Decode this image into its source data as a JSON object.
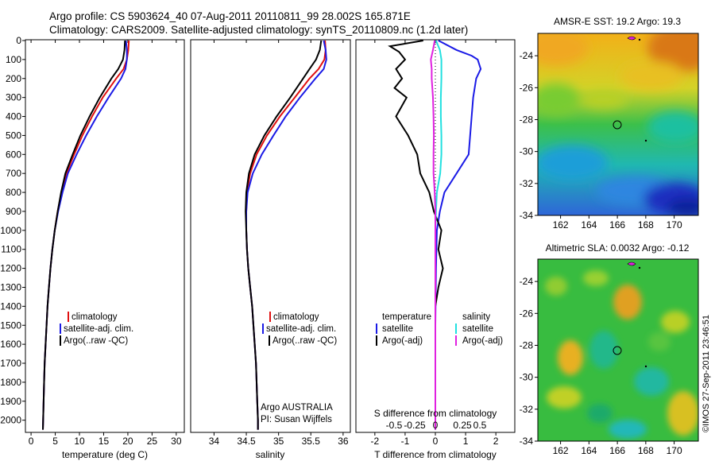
{
  "header": {
    "line1": "Argo profile: CS 5903624_40 07-Aug-2011 20110811_99 28.002S 165.871E",
    "line2": "Climatology: CARS2009. Satellite-adjusted climatology: synTS_20110809.nc (1.2d later)"
  },
  "colors": {
    "climatology": "#e01010",
    "satellite": "#1a1ae6",
    "argo": "#000000",
    "satellite_salinity": "#22e0e0",
    "argo_salinity": "#e020e0"
  },
  "depth_axis": {
    "ticks": [
      0,
      100,
      200,
      300,
      400,
      500,
      600,
      700,
      800,
      900,
      1000,
      1100,
      1200,
      1300,
      1400,
      1500,
      1600,
      1700,
      1800,
      1900,
      2000
    ],
    "range": [
      0,
      2060
    ]
  },
  "chart_data": [
    {
      "type": "line",
      "xlabel": "temperature (deg C)",
      "xlim": [
        -1,
        31.5
      ],
      "xticks": [
        0,
        5,
        10,
        15,
        20,
        25,
        30
      ],
      "legend": [
        "climatology",
        "satellite-adj. clim.",
        "Argo(..raw -QC)"
      ],
      "series": [
        {
          "name": "climatology",
          "color": "red",
          "depth": [
            0,
            50,
            100,
            150,
            200,
            300,
            400,
            500,
            600,
            700,
            800,
            900,
            1000,
            1100,
            1200,
            1300,
            1400,
            1500,
            1600,
            1700,
            1800,
            1900,
            2000,
            2050
          ],
          "values": [
            20.2,
            20.1,
            19.8,
            19.1,
            17.6,
            14.8,
            12.6,
            10.6,
            8.9,
            7.3,
            6.3,
            5.5,
            4.9,
            4.4,
            4.0,
            3.7,
            3.4,
            3.2,
            3.0,
            2.8,
            2.7,
            2.6,
            2.5,
            2.45
          ]
        },
        {
          "name": "satellite-adj. clim.",
          "color": "blue",
          "depth": [
            0,
            50,
            100,
            150,
            200,
            300,
            400,
            500,
            600,
            700,
            800,
            900,
            1000,
            1100,
            1200,
            1300,
            1400,
            1500,
            1600,
            1700,
            1800,
            1900,
            2000,
            2050
          ],
          "values": [
            19.6,
            19.8,
            19.8,
            19.5,
            18.6,
            16.0,
            13.6,
            11.4,
            9.4,
            7.6,
            6.5,
            5.6,
            4.9,
            4.4,
            4.0,
            3.7,
            3.4,
            3.2,
            3.0,
            2.8,
            2.7,
            2.6,
            2.5,
            2.45
          ]
        },
        {
          "name": "Argo(..raw -QC)",
          "color": "black",
          "depth": [
            0,
            50,
            100,
            150,
            200,
            300,
            400,
            500,
            600,
            700,
            800,
            900,
            1000,
            1100,
            1200,
            1300,
            1400,
            1500,
            1600,
            1700,
            1800,
            1900,
            2000,
            2050
          ],
          "values": [
            19.4,
            19.3,
            19.0,
            18.0,
            16.6,
            14.2,
            12.1,
            10.2,
            8.6,
            7.1,
            6.2,
            5.5,
            4.9,
            4.4,
            4.0,
            3.7,
            3.4,
            3.2,
            3.0,
            2.8,
            2.7,
            2.6,
            2.5,
            2.45
          ]
        }
      ]
    },
    {
      "type": "line",
      "xlabel": "salinity",
      "xlim": [
        33.65,
        36.1
      ],
      "xticks": [
        34,
        34.5,
        35,
        35.5,
        36
      ],
      "legend": [
        "climatology",
        "satellite-adj. clim.",
        "Argo(..raw -QC)"
      ],
      "annotation": [
        "Argo AUSTRALIA",
        "PI: Susan Wijffels"
      ],
      "series": [
        {
          "name": "climatology",
          "color": "red",
          "depth": [
            0,
            50,
            100,
            150,
            200,
            300,
            400,
            500,
            600,
            700,
            800,
            900,
            1000,
            1100,
            1200,
            1300,
            1400,
            1500,
            1600,
            1700,
            1800,
            1900,
            2000,
            2050
          ],
          "values": [
            35.72,
            35.73,
            35.71,
            35.62,
            35.48,
            35.25,
            35.02,
            34.82,
            34.66,
            34.56,
            34.51,
            34.5,
            34.5,
            34.51,
            34.53,
            34.56,
            34.59,
            34.61,
            34.63,
            34.65,
            34.66,
            34.67,
            34.68,
            34.68
          ]
        },
        {
          "name": "satellite-adj. clim.",
          "color": "blue",
          "depth": [
            0,
            50,
            100,
            150,
            200,
            300,
            400,
            500,
            600,
            700,
            800,
            900,
            1000,
            1100,
            1200,
            1300,
            1400,
            1500,
            1600,
            1700,
            1800,
            1900,
            2000,
            2050
          ],
          "values": [
            35.7,
            35.73,
            35.74,
            35.7,
            35.57,
            35.33,
            35.11,
            34.92,
            34.74,
            34.6,
            34.52,
            34.5,
            34.5,
            34.51,
            34.53,
            34.56,
            34.59,
            34.61,
            34.63,
            34.65,
            34.66,
            34.67,
            34.68,
            34.68
          ]
        },
        {
          "name": "Argo(..raw -QC)",
          "color": "black",
          "depth": [
            0,
            50,
            100,
            150,
            200,
            300,
            400,
            500,
            600,
            700,
            800,
            900,
            1000,
            1100,
            1200,
            1300,
            1400,
            1500,
            1600,
            1700,
            1800,
            1900,
            2000,
            2050
          ],
          "values": [
            35.66,
            35.64,
            35.58,
            35.48,
            35.38,
            35.18,
            34.97,
            34.78,
            34.63,
            34.54,
            34.5,
            34.49,
            34.5,
            34.51,
            34.53,
            34.56,
            34.59,
            34.61,
            34.63,
            34.65,
            34.66,
            34.67,
            34.68,
            34.68
          ]
        }
      ]
    },
    {
      "type": "line",
      "xlabel": "T difference from climatology",
      "xlabel_top": "S difference from climatology",
      "xlim": [
        -2.6,
        2.6
      ],
      "xticks": [
        -2,
        -1,
        0,
        1,
        2
      ],
      "top_ticks": [
        "-0.5",
        "-0.25",
        "0",
        "0.25",
        "0.5"
      ],
      "legend_left": [
        "temperature",
        "satellite",
        "Argo(-adj)"
      ],
      "legend_right": [
        "salinity",
        "satellite",
        "Argo(-adj)"
      ],
      "series": [
        {
          "name": "temperature satellite",
          "color": "blue",
          "depth": [
            0,
            50,
            80,
            100,
            150,
            200,
            300,
            400,
            500,
            600,
            700,
            800,
            900,
            1000,
            1200,
            1500,
            1800,
            2050
          ],
          "values": [
            0.1,
            0.7,
            1.2,
            1.4,
            1.5,
            1.35,
            1.25,
            1.2,
            1.15,
            1.1,
            0.7,
            0.3,
            0.15,
            0.05,
            0.02,
            0.0,
            0.0,
            0.0
          ]
        },
        {
          "name": "temperature Argo(-adj)",
          "color": "black",
          "depth": [
            0,
            30,
            60,
            100,
            150,
            200,
            250,
            300,
            400,
            500,
            600,
            700,
            800,
            900,
            1000,
            1100,
            1200,
            1300,
            1400,
            1500,
            1800,
            2050
          ],
          "values": [
            -0.4,
            -1.5,
            -1.2,
            -1.0,
            -1.3,
            -1.1,
            -1.35,
            -0.95,
            -1.3,
            -0.9,
            -0.6,
            -0.5,
            -0.2,
            -0.05,
            0.2,
            0.1,
            0.25,
            0.1,
            0.0,
            0.0,
            0.0,
            0.0
          ]
        },
        {
          "name": "salinity satellite",
          "color": "cyan",
          "depth": [
            0,
            50,
            100,
            200,
            300,
            400,
            500,
            600,
            700,
            800,
            900,
            1000,
            1200,
            1500,
            1800,
            2050
          ],
          "values": [
            0.02,
            0.15,
            0.2,
            0.2,
            0.18,
            0.18,
            0.2,
            0.2,
            0.16,
            0.05,
            0.02,
            0.0,
            0.0,
            0.0,
            0.0,
            0.0
          ]
        },
        {
          "name": "salinity Argo(-adj)",
          "color": "magenta",
          "depth": [
            0,
            50,
            100,
            150,
            200,
            300,
            400,
            500,
            600,
            700,
            800,
            900,
            1000,
            1200,
            1500,
            1800,
            2050
          ],
          "values": [
            -0.02,
            -0.08,
            -0.15,
            -0.12,
            -0.12,
            -0.08,
            -0.06,
            -0.05,
            -0.06,
            -0.06,
            -0.02,
            0.0,
            0.0,
            0.0,
            0.0,
            0.0,
            0.0
          ]
        }
      ]
    },
    {
      "type": "heatmap",
      "title": "AMSR-E SST: 19.2 Argo: 19.3",
      "xticks": [
        162,
        164,
        166,
        168,
        170
      ],
      "yticks": [
        -24,
        -26,
        -28,
        -30,
        -32,
        -34
      ]
    },
    {
      "type": "heatmap",
      "title": "Altimetric SLA: 0.0032 Argo: -0.12",
      "xticks": [
        162,
        164,
        166,
        168,
        170
      ],
      "yticks": [
        -24,
        -26,
        -28,
        -30,
        -32,
        -34
      ]
    }
  ],
  "credit": "©IMOS 27-Sep-2011 23:46:51"
}
